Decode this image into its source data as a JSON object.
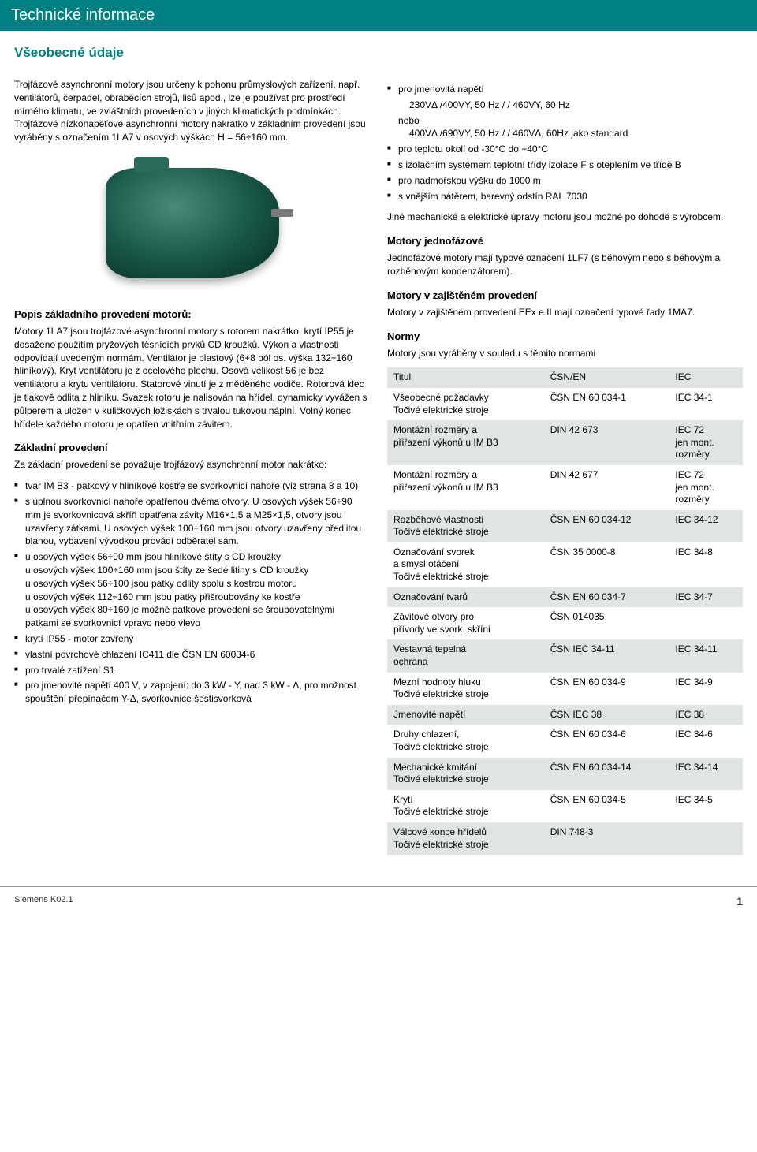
{
  "header": "Technické informace",
  "subheader": "Všeobecné údaje",
  "left": {
    "intro1": "Trojfázové asynchronní motory jsou určeny k pohonu průmyslových zařízení, např. ventilátorů, čerpadel, obráběcích strojů, lisů apod., lze je používat pro prostředí mírného klimatu, ve zvláštních provedeních v jiných klimatických podmínkách. Trojfázové nízkonapěťové asynchronní motory nakrátko v základním provedení jsou vyráběny s označením 1LA7 v osových výškách H = 56÷160 mm.",
    "popis_h": "Popis základního provedení motorů:",
    "popis_p": "Motory 1LA7 jsou trojfázové asynchronní motory s rotorem nakrátko, krytí IP55 je dosaženo použitím pryžových těsnících prvků CD kroužků. Výkon a vlastnosti odpovídají uvedeným normám. Ventilátor je plastový (6+8 pól os. výška 132÷160 hliníkový). Kryt ventilátoru je z ocelového plechu. Osová velikost 56 je bez ventilátoru a krytu ventilátoru. Statorové vinutí je z měděného vodiče. Rotorová klec je tlakově odlita z hliníku. Svazek rotoru je nalisován na hřídel, dynamicky vyvážen s půlperem a uložen v kuličkových ložiskách s trvalou tukovou náplní. Volný konec hřídele každého motoru je opatřen vnitřním závitem.",
    "zaklad_h": "Základní provedení",
    "zaklad_p": "Za základní provedení se považuje trojfázový asynchronní motor nakrátko:",
    "zlist": [
      "tvar IM B3 - patkový v hliníkové kostře se svorkovnicí nahoře (viz strana 8 a 10)",
      "s úplnou svorkovnicí nahoře opatřenou dvěma otvory. U osových výšek 56÷90 mm je svorkovnicová skříň opatřena závity M16×1,5 a M25×1,5, otvory jsou uzavřeny zátkami. U osových výšek 100÷160 mm jsou otvory uzavřeny předlitou blanou, vybavení vývodkou provádí odběratel sám.",
      "u osových výšek 56÷90 mm jsou hliníkové štíty s CD kroužky\nu osových výšek 100÷160 mm jsou štíty ze šedé litiny s CD kroužky\nu osových výšek 56÷100 jsou patky odlity spolu s kostrou motoru\nu osových výšek 112÷160 mm jsou patky přišroubovány ke kostře\nu osových výšek 80÷160 je možné patkové provedení se šroubovatelnými patkami se svorkovnicí vpravo nebo vlevo",
      "krytí IP55 - motor zavřený",
      "vlastní povrchové chlazení IC411 dle ČSN EN 60034-6",
      "pro trvalé zatížení S1",
      "pro jmenovité napětí 400 V, v zapojení: do 3 kW - Y, nad 3 kW - Δ, pro možnost spouštění přepínačem Y-Δ, svorkovnice šestisvorková"
    ]
  },
  "right": {
    "spec_list": [
      "pro jmenovitá napětí",
      "pro teplotu okolí od -30°C do +40°C",
      "s izolačním systémem teplotní třídy izolace F s oteplením ve třídě B",
      "pro nadmořskou výšku do 1000 m",
      "s vnějším nátěrem, barevný odstín RAL 7030"
    ],
    "volt_lines": {
      "l1": "230VΔ /400VY, 50 Hz  /  / 460VY, 60 Hz",
      "nebo": "nebo",
      "l2": "400VΔ /690VY, 50 Hz /  / 460VΔ, 60Hz jako standard"
    },
    "jine_p": "Jiné mechanické a elektrické úpravy motoru jsou možné po dohodě s výrobcem.",
    "mono_h": "Motory jednofázové",
    "mono_p": "Jednofázové motory mají typové označení 1LF7 (s běhovým nebo s běhovým a rozběhovým kondenzátorem).",
    "zaj_h": "Motory v zajištěném provedení",
    "zaj_p": "Motory v zajištěném provedení EEx e II mají označení typové řady 1MA7.",
    "normy_h": "Normy",
    "normy_p": "Motory jsou vyráběny v souladu s těmito normami",
    "table": {
      "head": [
        "Titul",
        "ČSN/EN",
        "IEC"
      ],
      "rows": [
        {
          "sh": false,
          "c": [
            "Všeobecné požadavky\nTočivé elektrické stroje",
            "ČSN EN 60 034-1",
            "IEC 34-1"
          ]
        },
        {
          "sh": true,
          "c": [
            "Montážní rozměry a\npřiřazení výkonů u IM B3",
            "DIN 42 673",
            "IEC 72\njen mont.\nrozměry"
          ]
        },
        {
          "sh": false,
          "c": [
            "Montážní rozměry a\npřiřazení výkonů u IM B3",
            "DIN 42 677",
            "IEC 72\njen mont.\nrozměry"
          ]
        },
        {
          "sh": true,
          "c": [
            "Rozběhové vlastnosti\nTočivé elektrické stroje",
            "ČSN EN 60 034-12",
            "IEC 34-12"
          ]
        },
        {
          "sh": false,
          "c": [
            "Označování svorek\na smysl otáčení\nTočivé elektrické stroje",
            "ČSN 35 0000-8",
            "IEC 34-8"
          ]
        },
        {
          "sh": true,
          "c": [
            "Označování tvarů",
            "ČSN EN 60 034-7",
            "IEC 34-7"
          ]
        },
        {
          "sh": false,
          "c": [
            "Závitové otvory pro\npřívody ve svork. skříni",
            "ČSN 014035",
            ""
          ]
        },
        {
          "sh": true,
          "c": [
            "Vestavná tepelná\nochrana",
            "ČSN IEC 34-11",
            "IEC 34-11"
          ]
        },
        {
          "sh": false,
          "c": [
            "Mezní hodnoty hluku\nTočivé elektrické stroje",
            "ČSN EN 60 034-9",
            "IEC 34-9"
          ]
        },
        {
          "sh": true,
          "c": [
            "Jmenovité napětí",
            "ČSN IEC 38",
            "IEC 38"
          ]
        },
        {
          "sh": false,
          "c": [
            "Druhy chlazení,\nTočivé elektrické stroje",
            "ČSN EN 60 034-6",
            "IEC 34-6"
          ]
        },
        {
          "sh": true,
          "c": [
            "Mechanické kmitání\nTočivé elektrické stroje",
            "ČSN EN 60 034-14",
            "IEC 34-14"
          ]
        },
        {
          "sh": false,
          "c": [
            "Krytí\nTočivé elektrické stroje",
            "ČSN EN 60 034-5",
            "IEC 34-5"
          ]
        },
        {
          "sh": true,
          "c": [
            "Válcové konce hřídelů\nTočivé elektrické stroje",
            "DIN 748-3",
            ""
          ]
        }
      ]
    }
  },
  "footer": {
    "left": "Siemens K02.1",
    "page": "1"
  }
}
